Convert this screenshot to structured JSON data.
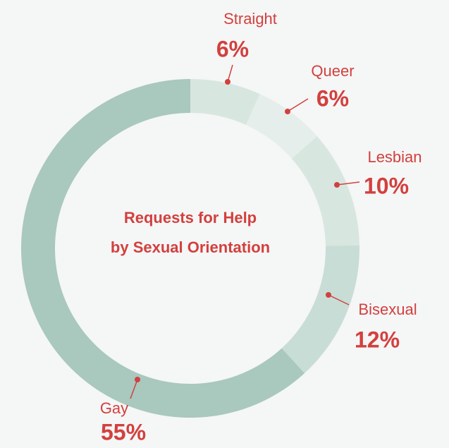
{
  "chart_data": {
    "type": "donut",
    "title": [
      "Requests for Help",
      "by  Sexual Orientation"
    ],
    "categories": [
      "Straight",
      "Queer",
      "Lesbian",
      "Bisexual",
      "Gay"
    ],
    "values": [
      6,
      6,
      10,
      12,
      55
    ],
    "value_labels": [
      "6%",
      "6%",
      "10%",
      "12%",
      "55%"
    ],
    "colors": [
      "#d8e6e0",
      "#e5eeea",
      "#d8e6e0",
      "#c8ddd5",
      "#a9c8be"
    ],
    "label_color": "#d2403e"
  }
}
